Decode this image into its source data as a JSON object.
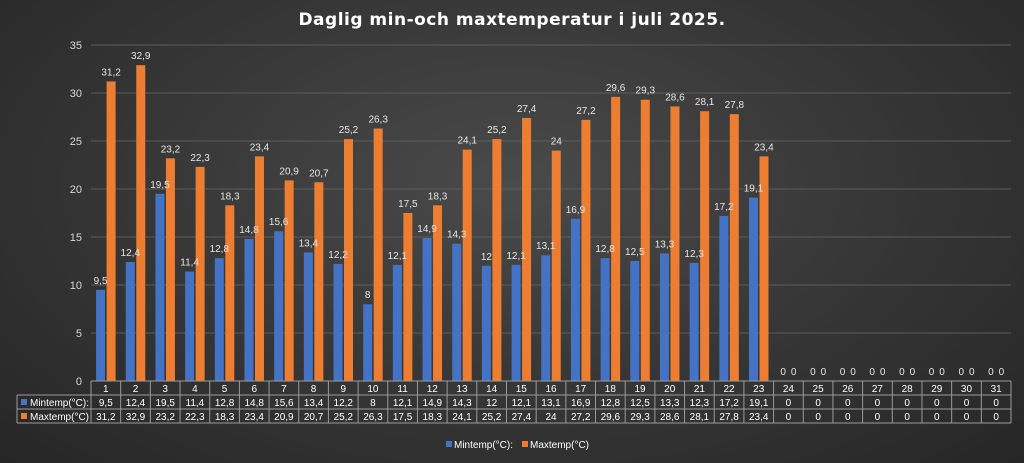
{
  "chart_data": {
    "type": "bar",
    "title": "Daglig min-och maxtemperatur i juli 2025.",
    "xlabel": "",
    "ylabel": "",
    "ylim": [
      0,
      35
    ],
    "yticks": [
      0,
      5,
      10,
      15,
      20,
      25,
      30,
      35
    ],
    "grid": true,
    "legend": "bottom",
    "data_table": true,
    "categories": [
      "1",
      "2",
      "3",
      "4",
      "5",
      "6",
      "7",
      "8",
      "9",
      "10",
      "11",
      "12",
      "13",
      "14",
      "15",
      "16",
      "17",
      "18",
      "19",
      "20",
      "21",
      "22",
      "23",
      "24",
      "25",
      "26",
      "27",
      "28",
      "29",
      "30",
      "31"
    ],
    "series": [
      {
        "name": "Mintemp(°C):",
        "color": "#4472C4",
        "values": [
          9.5,
          12.4,
          19.5,
          11.4,
          12.8,
          14.8,
          15.6,
          13.4,
          12.2,
          8,
          12.1,
          14.9,
          14.3,
          12,
          12.1,
          13.1,
          16.9,
          12.8,
          12.5,
          13.3,
          12.3,
          17.2,
          19.1,
          0,
          0,
          0,
          0,
          0,
          0,
          0,
          0
        ],
        "labels": [
          "9,5",
          "12,4",
          "19,5",
          "11,4",
          "12,8",
          "14,8",
          "15,6",
          "13,4",
          "12,2",
          "8",
          "12,1",
          "14,9",
          "14,3",
          "12",
          "12,1",
          "13,1",
          "16,9",
          "12,8",
          "12,5",
          "13,3",
          "12,3",
          "17,2",
          "19,1",
          "0",
          "0",
          "0",
          "0",
          "0",
          "0",
          "0",
          "0"
        ]
      },
      {
        "name": "Maxtemp(°C)",
        "color": "#ED7D31",
        "values": [
          31.2,
          32.9,
          23.2,
          22.3,
          18.3,
          23.4,
          20.9,
          20.7,
          25.2,
          26.3,
          17.5,
          18.3,
          24.1,
          25.2,
          27.4,
          24,
          27.2,
          29.6,
          29.3,
          28.6,
          28.1,
          27.8,
          23.4,
          0,
          0,
          0,
          0,
          0,
          0,
          0,
          0
        ],
        "labels": [
          "31,2",
          "32,9",
          "23,2",
          "22,3",
          "18,3",
          "23,4",
          "20,9",
          "20,7",
          "25,2",
          "26,3",
          "17,5",
          "18,3",
          "24,1",
          "25,2",
          "27,4",
          "24",
          "27,2",
          "29,6",
          "29,3",
          "28,6",
          "28,1",
          "27,8",
          "23,4",
          "0",
          "0",
          "0",
          "0",
          "0",
          "0",
          "0",
          "0"
        ]
      }
    ]
  }
}
